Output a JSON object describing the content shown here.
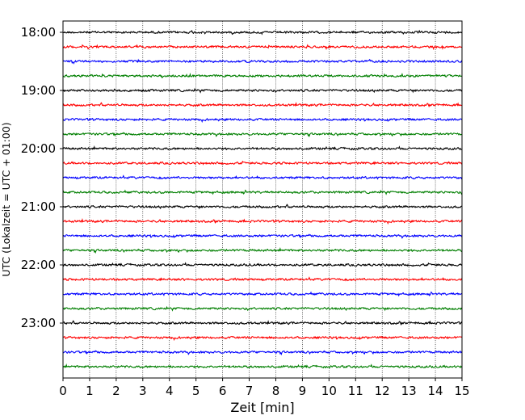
{
  "chart_data": {
    "type": "line",
    "title": "",
    "xlabel": "Zeit  [min]",
    "ylabel": "UTC (Lokalzeit = UTC + 01:00)",
    "xlim": [
      0,
      15
    ],
    "x_ticks": [
      "0",
      "1",
      "2",
      "3",
      "4",
      "5",
      "6",
      "7",
      "8",
      "9",
      "10",
      "11",
      "12",
      "13",
      "14",
      "15"
    ],
    "y_ticks": [
      "18:00",
      "19:00",
      "20:00",
      "21:00",
      "22:00",
      "23:00"
    ],
    "grid": "vertical dotted lines at each minute",
    "rows_per_hour": 4,
    "row_interval_minutes": 15,
    "row_colors": [
      "#000000",
      "#ff0000",
      "#0000ff",
      "#007f00"
    ],
    "traces": [
      {
        "start": "18:00"
      },
      {
        "start": "18:15"
      },
      {
        "start": "18:30"
      },
      {
        "start": "18:45"
      },
      {
        "start": "19:00"
      },
      {
        "start": "19:15"
      },
      {
        "start": "19:30"
      },
      {
        "start": "19:45"
      },
      {
        "start": "20:00"
      },
      {
        "start": "20:15"
      },
      {
        "start": "20:30"
      },
      {
        "start": "20:45"
      },
      {
        "start": "21:00"
      },
      {
        "start": "21:15"
      },
      {
        "start": "21:30"
      },
      {
        "start": "21:45"
      },
      {
        "start": "22:00"
      },
      {
        "start": "22:15"
      },
      {
        "start": "22:30"
      },
      {
        "start": "22:45"
      },
      {
        "start": "23:00"
      },
      {
        "start": "23:15"
      },
      {
        "start": "23:30"
      },
      {
        "start": "23:45"
      }
    ]
  }
}
